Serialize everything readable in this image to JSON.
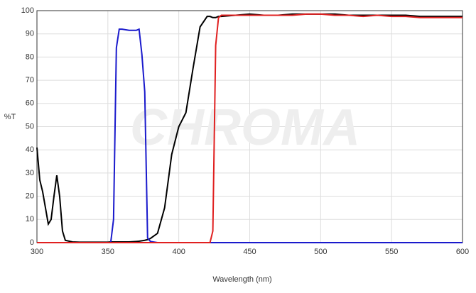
{
  "chart_data": {
    "type": "line",
    "xlabel": "Wavelength (nm)",
    "ylabel": "%T",
    "watermark": "CHROMA",
    "x": [
      300,
      302,
      304,
      306,
      308,
      310,
      312,
      314,
      316,
      318,
      320,
      325,
      330,
      340,
      350,
      352,
      354,
      356,
      358,
      360,
      365,
      370,
      372,
      374,
      376,
      378,
      380,
      385,
      390,
      395,
      400,
      405,
      410,
      415,
      420,
      422,
      424,
      426,
      428,
      430,
      440,
      450,
      460,
      470,
      480,
      490,
      500,
      510,
      520,
      530,
      540,
      550,
      560,
      570,
      580,
      590,
      600
    ],
    "series": [
      {
        "color": "#000000",
        "values": [
          41,
          27,
          22,
          15,
          8,
          10,
          20,
          29,
          20,
          5,
          1,
          0.3,
          0.2,
          0.2,
          0.2,
          0.3,
          0.3,
          0.3,
          0.3,
          0.3,
          0.3,
          0.5,
          0.6,
          0.8,
          1,
          1.3,
          1.8,
          4,
          15,
          38,
          50,
          56,
          75,
          93,
          97.5,
          97.5,
          97,
          97,
          97.5,
          97.5,
          98,
          98.5,
          98,
          98,
          98.5,
          98.5,
          98.5,
          98.5,
          98,
          98,
          98,
          98,
          98,
          97.5,
          97.5,
          97.5,
          97.5
        ]
      },
      {
        "color": "#1a1acc",
        "values": [
          0,
          0,
          0,
          0,
          0,
          0,
          0,
          0,
          0,
          0,
          0,
          0,
          0,
          0,
          0,
          0,
          10,
          84,
          92,
          92,
          91.5,
          91.5,
          92,
          81,
          65,
          2,
          0.5,
          0,
          0,
          0,
          0,
          0,
          0,
          0,
          0,
          0,
          0,
          0,
          0,
          0,
          0,
          0,
          0,
          0,
          0,
          0,
          0,
          0,
          0,
          0,
          0,
          0,
          0,
          0,
          0,
          0,
          0
        ]
      },
      {
        "color": "#e02020",
        "values": [
          0,
          0,
          0,
          0,
          0,
          0,
          0,
          0,
          0,
          0,
          0,
          0,
          0,
          0,
          0,
          0,
          0,
          0,
          0,
          0,
          0,
          0,
          0,
          0,
          0,
          0,
          0,
          0,
          0,
          0,
          0,
          0,
          0,
          0,
          0,
          0,
          5,
          85,
          97,
          98,
          98,
          98,
          98,
          98,
          98,
          98.5,
          98.5,
          98,
          98,
          97.5,
          98,
          97.5,
          97.5,
          97,
          97,
          97,
          97
        ]
      }
    ],
    "xlim": [
      300,
      600
    ],
    "xticks": [
      300,
      350,
      400,
      450,
      500,
      550,
      600
    ],
    "ylim": [
      0,
      100
    ],
    "yticks": [
      0,
      10,
      20,
      30,
      40,
      50,
      60,
      70,
      80,
      90,
      100
    ],
    "grid": true
  }
}
